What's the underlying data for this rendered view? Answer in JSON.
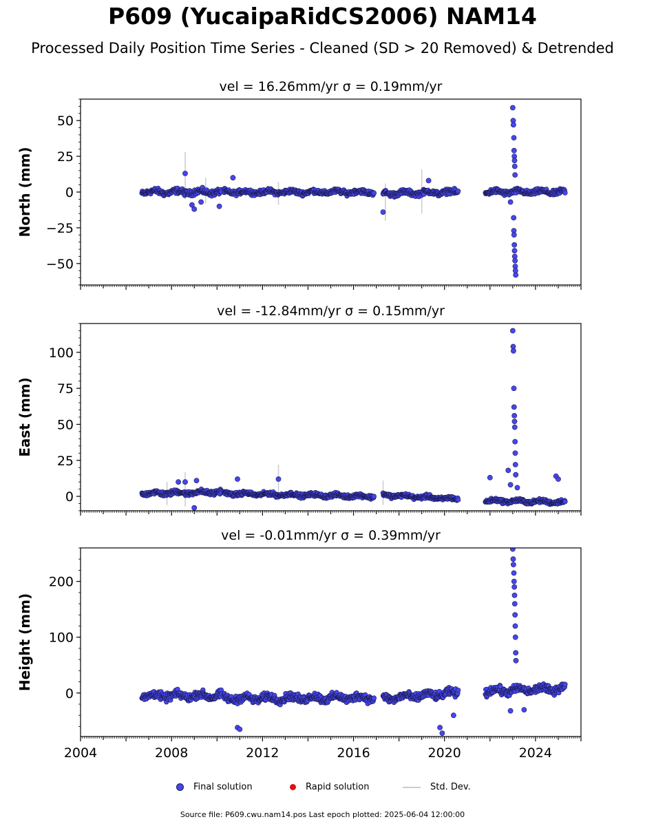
{
  "title": "P609 (YucaipaRidCS2006) NAM14",
  "subtitle": "Processed Daily Position Time Series - Cleaned (SD > 20 Removed) & Detrended",
  "legend": {
    "final": "Final solution",
    "rapid": "Rapid solution",
    "std": "Std. Dev."
  },
  "footer": "Source file: P609.cwu.nam14.pos  Last epoch plotted: 2025-06-04 12:00:00",
  "colors": {
    "final": "#4646f0",
    "rapid": "#e01010",
    "std": "#cccccc",
    "edge": "#1a1a4a"
  },
  "chart_data": [
    {
      "type": "scatter",
      "title": "vel = 16.26mm/yr   σ = 0.19mm/yr",
      "ylabel": "North (mm)",
      "xlim": [
        2004,
        2026
      ],
      "ylim": [
        -65,
        65
      ],
      "yticks": [
        -50,
        -25,
        0,
        25,
        50
      ],
      "ytick_labels": [
        "−50",
        "−25",
        "0",
        "25",
        "50"
      ],
      "segments": [
        {
          "x": [
            2006.7,
            2010.2
          ],
          "base": [
            0,
            0
          ],
          "noise": 2.2
        },
        {
          "x": [
            2010.3,
            2016.9
          ],
          "base": [
            0,
            0
          ],
          "noise": 1.8
        },
        {
          "x": [
            2017.3,
            2020.6
          ],
          "base": [
            -1,
            0
          ],
          "noise": 2.0
        },
        {
          "x": [
            2021.8,
            2025.3
          ],
          "base": [
            0,
            0
          ],
          "noise": 2.0
        }
      ],
      "outliers": [
        [
          2008.6,
          13
        ],
        [
          2008.9,
          -9
        ],
        [
          2009.0,
          -12
        ],
        [
          2009.3,
          -7
        ],
        [
          2010.1,
          -10
        ],
        [
          2010.7,
          10
        ],
        [
          2017.3,
          -14
        ],
        [
          2019.3,
          8
        ],
        [
          2023.0,
          59
        ],
        [
          2023.02,
          50
        ],
        [
          2023.03,
          47
        ],
        [
          2023.05,
          38
        ],
        [
          2023.06,
          29
        ],
        [
          2023.07,
          25
        ],
        [
          2023.08,
          22
        ],
        [
          2023.09,
          18
        ],
        [
          2023.1,
          12
        ],
        [
          2023.04,
          -18
        ],
        [
          2023.05,
          -27
        ],
        [
          2023.06,
          -30
        ],
        [
          2023.07,
          -37
        ],
        [
          2023.08,
          -41
        ],
        [
          2023.09,
          -45
        ],
        [
          2023.1,
          -48
        ],
        [
          2023.11,
          -52
        ],
        [
          2023.12,
          -55
        ],
        [
          2023.13,
          -58
        ],
        [
          2022.9,
          -7
        ]
      ],
      "errbars": [
        [
          2008.6,
          28,
          -5
        ],
        [
          2009.5,
          10,
          -8
        ],
        [
          2012.7,
          7,
          -9
        ],
        [
          2017.4,
          6,
          -20
        ],
        [
          2019.0,
          16,
          -15
        ]
      ]
    },
    {
      "type": "scatter",
      "title": "vel = -12.84mm/yr   σ = 0.15mm/yr",
      "ylabel": "East (mm)",
      "xlim": [
        2004,
        2026
      ],
      "ylim": [
        -10,
        120
      ],
      "yticks": [
        0,
        25,
        50,
        75,
        100
      ],
      "ytick_labels": [
        "0",
        "25",
        "50",
        "75",
        "100"
      ],
      "segments": [
        {
          "x": [
            2006.7,
            2010.2
          ],
          "base": [
            2,
            3
          ],
          "noise": 1.8
        },
        {
          "x": [
            2010.3,
            2016.9
          ],
          "base": [
            2,
            0
          ],
          "noise": 1.5
        },
        {
          "x": [
            2017.3,
            2020.6
          ],
          "base": [
            1,
            -2
          ],
          "noise": 1.5
        },
        {
          "x": [
            2021.8,
            2025.3
          ],
          "base": [
            -3,
            -4
          ],
          "noise": 1.5
        }
      ],
      "outliers": [
        [
          2008.3,
          10
        ],
        [
          2008.6,
          10
        ],
        [
          2009.1,
          11
        ],
        [
          2009.0,
          -8
        ],
        [
          2010.9,
          12
        ],
        [
          2012.7,
          12
        ],
        [
          2022.0,
          13
        ],
        [
          2024.9,
          14
        ],
        [
          2025.0,
          12
        ],
        [
          2023.0,
          115
        ],
        [
          2023.02,
          104
        ],
        [
          2023.03,
          101
        ],
        [
          2023.05,
          75
        ],
        [
          2023.06,
          62
        ],
        [
          2023.07,
          56
        ],
        [
          2023.08,
          52
        ],
        [
          2023.09,
          48
        ],
        [
          2023.1,
          38
        ],
        [
          2023.11,
          30
        ],
        [
          2023.12,
          22
        ],
        [
          2023.13,
          15
        ],
        [
          2022.8,
          18
        ],
        [
          2022.9,
          8
        ],
        [
          2023.2,
          6
        ]
      ],
      "errbars": [
        [
          2007.8,
          10,
          -6
        ],
        [
          2008.6,
          17,
          -7
        ],
        [
          2012.7,
          22,
          -3
        ],
        [
          2017.3,
          11,
          -6
        ]
      ]
    },
    {
      "type": "scatter",
      "title": "vel = -0.01mm/yr   σ = 0.39mm/yr",
      "ylabel": "Height (mm)",
      "xlim": [
        2004,
        2026
      ],
      "ylim": [
        -78,
        260
      ],
      "yticks": [
        0,
        100,
        200
      ],
      "ytick_labels": [
        "0",
        "100",
        "200"
      ],
      "xticks": [
        2004,
        2008,
        2012,
        2016,
        2020,
        2024
      ],
      "xtick_labels": [
        "2004",
        "2008",
        "2012",
        "2016",
        "2020",
        "2024"
      ],
      "segments": [
        {
          "x": [
            2006.7,
            2010.2
          ],
          "base": [
            -5,
            -5
          ],
          "noise": 8
        },
        {
          "x": [
            2010.3,
            2016.9
          ],
          "base": [
            -10,
            -8
          ],
          "noise": 8
        },
        {
          "x": [
            2017.3,
            2020.6
          ],
          "base": [
            -10,
            0
          ],
          "noise": 8
        },
        {
          "x": [
            2021.8,
            2025.3
          ],
          "base": [
            3,
            8
          ],
          "noise": 8
        }
      ],
      "outliers": [
        [
          2010.9,
          -62
        ],
        [
          2011.0,
          -65
        ],
        [
          2019.8,
          -62
        ],
        [
          2019.9,
          -72
        ],
        [
          2020.4,
          -40
        ],
        [
          2023.0,
          258
        ],
        [
          2023.02,
          240
        ],
        [
          2023.03,
          230
        ],
        [
          2023.05,
          215
        ],
        [
          2023.06,
          200
        ],
        [
          2023.07,
          190
        ],
        [
          2023.08,
          175
        ],
        [
          2023.09,
          160
        ],
        [
          2023.1,
          140
        ],
        [
          2023.11,
          120
        ],
        [
          2023.12,
          100
        ],
        [
          2023.13,
          72
        ],
        [
          2023.14,
          58
        ],
        [
          2022.9,
          -32
        ],
        [
          2023.5,
          -30
        ]
      ],
      "errbars": []
    }
  ]
}
